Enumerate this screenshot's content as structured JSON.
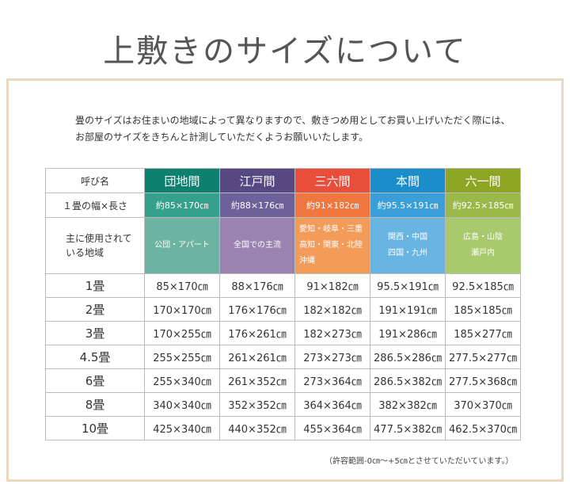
{
  "title": "上敷きのサイズについて",
  "intro": [
    "畳のサイズはお住まいの地域によって異なりますので、敷きつめ用としてお買い上げいただく際には、",
    "お部屋のサイズをきちんと計測していただくようお願いいたします。"
  ],
  "table": {
    "row_labels": {
      "name": "呼び名",
      "size": "１畳の幅×長さ",
      "region": [
        "主に使用されて",
        "いる地域"
      ]
    },
    "columns": [
      {
        "name": "団地間",
        "size": "約85×170㎝",
        "region": [
          "公団・アパート"
        ],
        "color": "#0e8070",
        "color2": "#35a08c",
        "color3": "#6cb3a2"
      },
      {
        "name": "江戸間",
        "size": "約88×176㎝",
        "region": [
          "全国での主流"
        ],
        "color": "#574884",
        "color2": "#6e619b",
        "color3": "#9a83b0"
      },
      {
        "name": "三六間",
        "size": "約91×182㎝",
        "region": [
          "愛知・岐阜・三重",
          "高知・関東・北陸",
          "沖縄"
        ],
        "color": "#e94e3b",
        "color2": "#f0773f",
        "color3": "#f39c5a"
      },
      {
        "name": "本間",
        "size": "約95.5×191㎝",
        "region": [
          "関西・中国",
          "四国・九州"
        ],
        "color": "#1b8dcb",
        "color2": "#3a9ed9",
        "color3": "#69b5e2"
      },
      {
        "name": "六一間",
        "size": "約92.5×185㎝",
        "region": [
          "広島・山陰",
          "瀬戸内"
        ],
        "color": "#8ea524",
        "color2": "#9bb94a",
        "color3": "#a8c96c"
      }
    ],
    "rows": [
      {
        "label": "1畳",
        "values": [
          "85×170㎝",
          "88×176㎝",
          "91×182㎝",
          "95.5×191㎝",
          "92.5×185㎝"
        ]
      },
      {
        "label": "2畳",
        "values": [
          "170×170㎝",
          "176×176㎝",
          "182×182㎝",
          "191×191㎝",
          "185×185㎝"
        ]
      },
      {
        "label": "3畳",
        "values": [
          "170×255㎝",
          "176×261㎝",
          "182×273㎝",
          "191×286㎝",
          "185×277㎝"
        ]
      },
      {
        "label": "4.5畳",
        "values": [
          "255×255㎝",
          "261×261㎝",
          "273×273㎝",
          "286.5×286㎝",
          "277.5×277㎝"
        ]
      },
      {
        "label": "6畳",
        "values": [
          "255×340㎝",
          "261×352㎝",
          "273×364㎝",
          "286.5×382㎝",
          "277.5×368㎝"
        ]
      },
      {
        "label": "8畳",
        "values": [
          "340×340㎝",
          "352×352㎝",
          "364×364㎝",
          "382×382㎝",
          "370×370㎝"
        ]
      },
      {
        "label": "10畳",
        "values": [
          "425×340㎝",
          "440×352㎝",
          "455×364㎝",
          "477.5×382㎝",
          "462.5×370㎝"
        ]
      }
    ]
  },
  "note": "（許容範囲-0㎝～+5㎝とさせていただいています。）"
}
